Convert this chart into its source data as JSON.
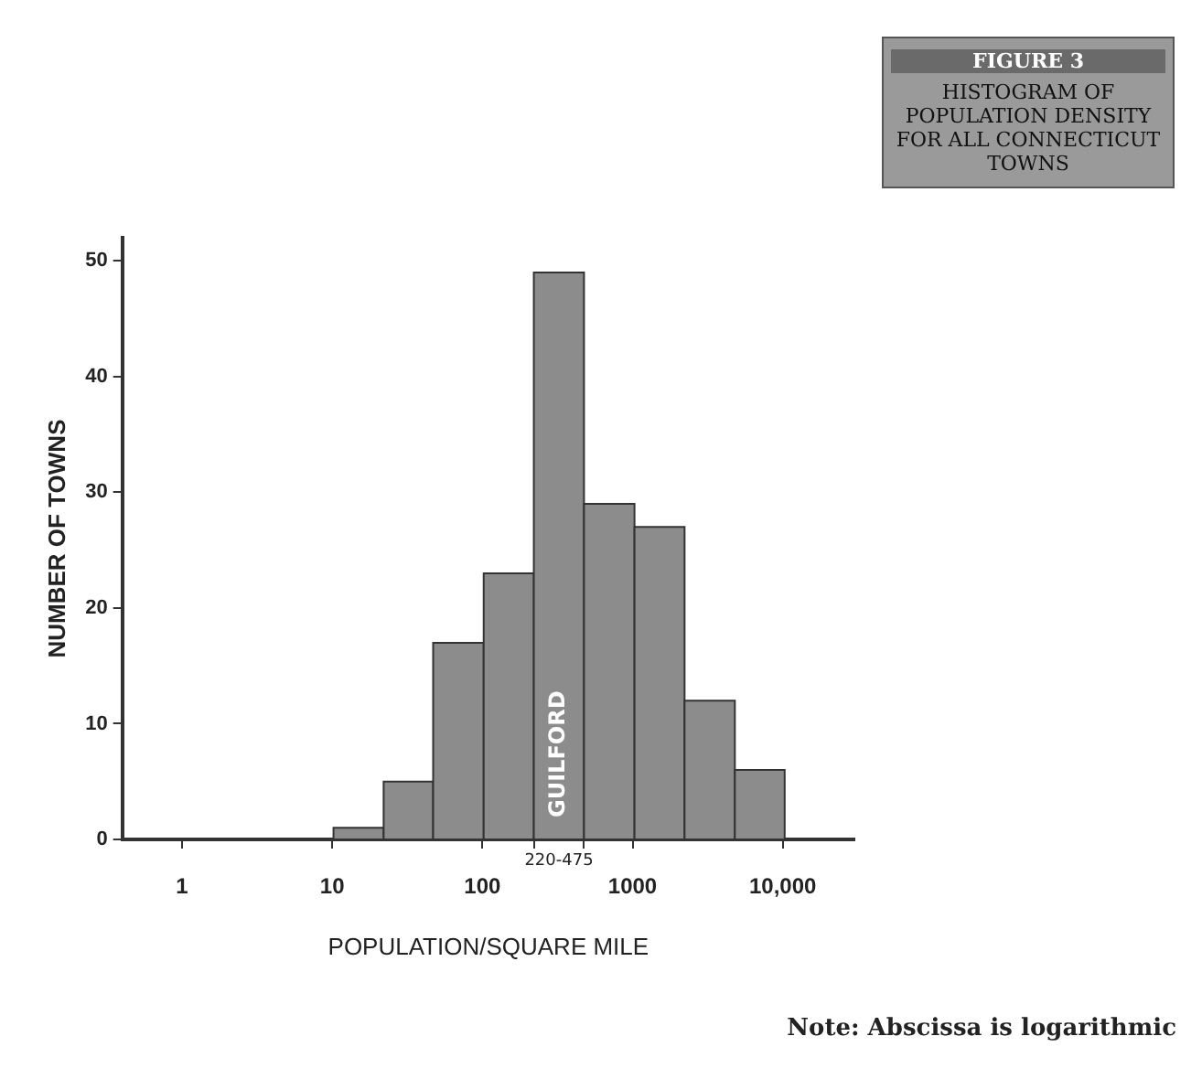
{
  "chart_data": {
    "type": "histogram",
    "title": "FIGURE 3",
    "subtitle": "HISTOGRAM OF POPULATION DENSITY FOR ALL CONNECTICUT TOWNS",
    "xlabel": "POPULATION/SQUARE MILE",
    "ylabel": "NUMBER OF TOWNS",
    "bins": [
      10.2,
      22,
      47,
      102,
      220,
      475,
      1030,
      2220,
      4800,
      10300
    ],
    "values": [
      1,
      5,
      17,
      23,
      49,
      29,
      27,
      12,
      6
    ],
    "color": "#8c8c8c",
    "log": "x",
    "xlim": [
      0.4,
      30000
    ],
    "xticks": [
      {
        "value": 1,
        "label": "1"
      },
      {
        "value": 10,
        "label": "10"
      },
      {
        "value": 100,
        "label": "100"
      },
      {
        "value": 1000,
        "label": "1000"
      },
      {
        "value": 10000,
        "label": "10,000"
      },
      {
        "value": 220,
        "label": null
      },
      {
        "value": 475,
        "label": null
      }
    ],
    "ylim": [
      0,
      52
    ],
    "yticks": [
      0,
      10,
      20,
      30,
      40,
      50
    ],
    "grid": false,
    "legend": false,
    "annotations": [
      "GUILFORD",
      "220-475",
      "Note: Abscissa is logarithmic"
    ]
  }
}
